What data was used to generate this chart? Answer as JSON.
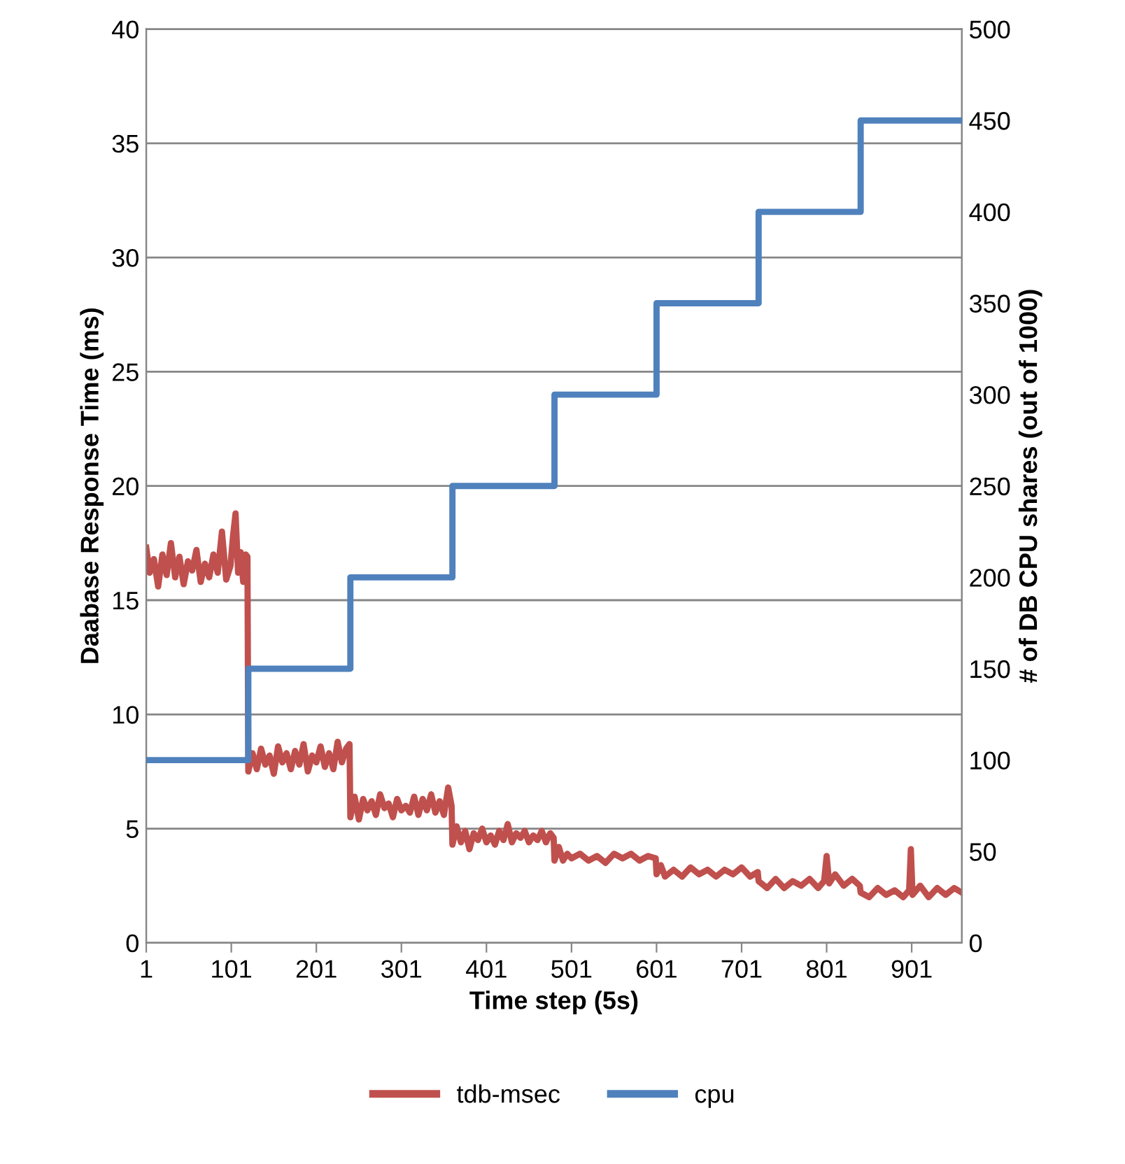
{
  "chart_data": {
    "type": "line",
    "xlabel": "Time step (5s)",
    "ylabel": "Daabase Response Time (ms)",
    "y2label": "# of DB CPU shares (out of 1000)",
    "xlim": [
      1,
      960
    ],
    "xticks": [
      1,
      101,
      201,
      301,
      401,
      501,
      601,
      701,
      801,
      901
    ],
    "ylim": [
      0,
      40
    ],
    "yticks": [
      0,
      5,
      10,
      15,
      20,
      25,
      30,
      35,
      40
    ],
    "y2lim": [
      0,
      500
    ],
    "y2ticks": [
      0,
      50,
      100,
      150,
      200,
      250,
      300,
      350,
      400,
      450,
      500
    ],
    "grid": "y",
    "legend": "bottom",
    "marker": "none",
    "line_style": "solid",
    "series": [
      {
        "name": "tdb-msec",
        "color": "#c0504d",
        "axis": "y",
        "x": [
          1,
          5,
          10,
          15,
          20,
          25,
          30,
          35,
          40,
          45,
          50,
          55,
          60,
          65,
          70,
          75,
          80,
          85,
          90,
          95,
          100,
          103,
          106,
          109,
          112,
          115,
          118,
          120,
          121,
          126,
          131,
          136,
          141,
          146,
          151,
          156,
          161,
          166,
          171,
          176,
          181,
          186,
          191,
          196,
          201,
          206,
          211,
          216,
          221,
          226,
          231,
          236,
          240,
          241,
          246,
          251,
          256,
          261,
          266,
          271,
          276,
          281,
          286,
          291,
          296,
          301,
          306,
          311,
          316,
          321,
          326,
          331,
          336,
          341,
          346,
          351,
          356,
          360,
          361,
          366,
          371,
          376,
          381,
          386,
          391,
          396,
          401,
          406,
          411,
          416,
          421,
          426,
          431,
          436,
          441,
          446,
          451,
          456,
          461,
          466,
          471,
          476,
          480,
          481,
          486,
          491,
          496,
          501,
          511,
          521,
          531,
          541,
          551,
          561,
          571,
          581,
          591,
          600,
          601,
          606,
          611,
          621,
          631,
          641,
          651,
          661,
          671,
          681,
          691,
          701,
          711,
          720,
          721,
          731,
          741,
          751,
          761,
          771,
          781,
          791,
          798,
          801,
          804,
          811,
          821,
          831,
          840,
          841,
          851,
          861,
          871,
          881,
          891,
          898,
          900,
          902,
          911,
          921,
          931,
          941,
          951,
          960
        ],
        "values": [
          17.3,
          16.2,
          16.8,
          15.6,
          17.0,
          16.1,
          17.5,
          16.0,
          16.9,
          15.7,
          16.7,
          16.3,
          17.2,
          15.8,
          16.6,
          16.0,
          17.0,
          16.2,
          18.0,
          15.9,
          16.5,
          17.8,
          18.8,
          16.2,
          17.1,
          15.8,
          17.0,
          16.9,
          7.5,
          8.3,
          7.6,
          8.5,
          7.8,
          8.2,
          7.4,
          8.6,
          7.9,
          8.3,
          7.6,
          8.4,
          7.8,
          8.7,
          7.5,
          8.2,
          7.9,
          8.6,
          7.7,
          8.3,
          7.6,
          8.8,
          7.9,
          8.5,
          8.7,
          5.5,
          6.4,
          5.4,
          6.3,
          5.8,
          6.2,
          5.6,
          6.5,
          5.9,
          6.1,
          5.5,
          6.3,
          5.8,
          6.0,
          5.7,
          6.4,
          5.6,
          6.3,
          5.8,
          6.5,
          5.7,
          6.2,
          5.6,
          6.8,
          6.0,
          4.3,
          5.1,
          4.4,
          4.9,
          4.1,
          4.8,
          4.5,
          5.0,
          4.4,
          4.7,
          4.3,
          4.9,
          4.5,
          5.2,
          4.4,
          4.8,
          4.6,
          4.9,
          4.4,
          4.7,
          4.5,
          4.9,
          4.4,
          4.8,
          4.6,
          3.6,
          4.2,
          3.6,
          3.9,
          3.7,
          3.9,
          3.6,
          3.8,
          3.5,
          3.9,
          3.7,
          3.9,
          3.6,
          3.8,
          3.7,
          3.0,
          3.4,
          2.9,
          3.2,
          2.9,
          3.3,
          3.0,
          3.2,
          2.9,
          3.2,
          3.0,
          3.3,
          2.9,
          3.1,
          2.7,
          2.4,
          2.8,
          2.4,
          2.7,
          2.5,
          2.8,
          2.4,
          2.7,
          3.8,
          2.6,
          3.0,
          2.5,
          2.8,
          2.5,
          2.2,
          2.0,
          2.4,
          2.1,
          2.3,
          2.0,
          2.3,
          4.1,
          2.1,
          2.5,
          2.0,
          2.4,
          2.1,
          2.4,
          2.2
        ]
      },
      {
        "name": "cpu",
        "color": "#4f81bd",
        "type": "step",
        "axis": "y2",
        "x": [
          1,
          121,
          241,
          361,
          481,
          601,
          721,
          841,
          960
        ],
        "values": [
          100,
          150,
          200,
          250,
          300,
          350,
          400,
          450,
          450
        ]
      }
    ]
  }
}
